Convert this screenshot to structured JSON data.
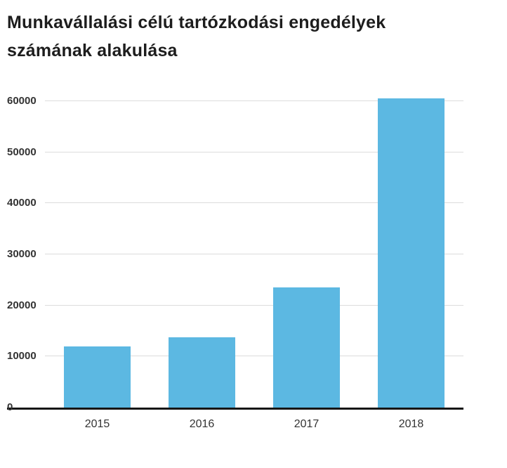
{
  "title": "Munkavállalási célú tartózkodási engedélyek számának alakulása",
  "colors": {
    "bar": "#5cb8e2",
    "gridline": "#dcdcdc",
    "axis_line": "#161616",
    "title_text": "#1d1d1d",
    "tick_text": "#333333"
  },
  "chart_data": {
    "type": "bar",
    "title": "Munkavállalási célú tartózkodási engedélyek számának alakulása",
    "categories": [
      "2015",
      "2016",
      "2017",
      "2018"
    ],
    "values": [
      12000,
      13800,
      23500,
      60500
    ],
    "xlabel": "",
    "ylabel": "",
    "ylim": [
      0,
      60000
    ],
    "yticks": [
      0,
      10000,
      20000,
      30000,
      40000,
      50000,
      60000
    ],
    "ytick_labels": [
      "0",
      "10000",
      "20000",
      "30000",
      "40000",
      "50000",
      "60000"
    ],
    "grid": true,
    "legend": "none",
    "bar_color": "#5cb8e2"
  }
}
